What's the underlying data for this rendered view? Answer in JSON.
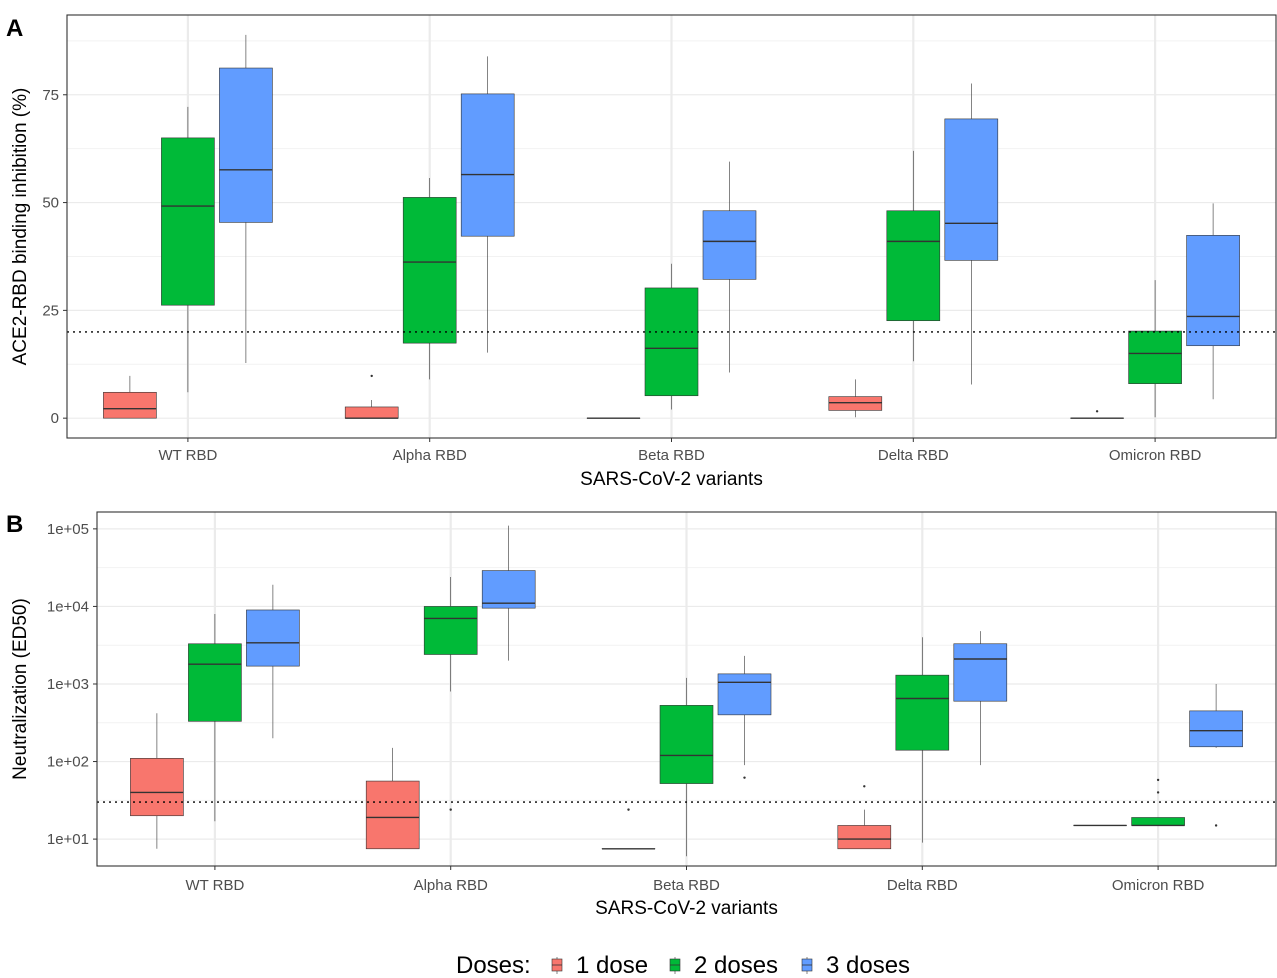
{
  "figure": {
    "legend": {
      "title": "Doses:",
      "entries": [
        {
          "label": "1 dose",
          "color": "#F8766D"
        },
        {
          "label": "2 doses",
          "color": "#00BA38"
        },
        {
          "label": "3 doses",
          "color": "#619CFF"
        }
      ]
    }
  },
  "chart_data": [
    {
      "panel": "A",
      "type": "box",
      "xlabel": "SARS-CoV-2 variants",
      "ylabel": "ACE2-RBD binding inhibition (%)",
      "categories": [
        "WT RBD",
        "Alpha RBD",
        "Beta RBD",
        "Delta RBD",
        "Omicron RBD"
      ],
      "yscale": "linear",
      "ylim": [
        -4.6,
        93.5
      ],
      "yticks": [
        0,
        25,
        50,
        75
      ],
      "ytick_labels": [
        "0",
        "25",
        "50",
        "75"
      ],
      "reference_line": 20,
      "grid": true,
      "series": [
        {
          "name": "1 dose",
          "color": "#F8766D",
          "boxes": [
            {
              "whisker_low": 0,
              "q1": 0,
              "median": 2.2,
              "q3": 6,
              "whisker_high": 9.8,
              "outliers": []
            },
            {
              "whisker_low": 0,
              "q1": 0,
              "median": 0,
              "q3": 2.6,
              "whisker_high": 4.2,
              "outliers": [
                9.8
              ]
            },
            {
              "whisker_low": 0,
              "q1": 0,
              "median": 0,
              "q3": 0,
              "whisker_high": 0,
              "outliers": []
            },
            {
              "whisker_low": 0.2,
              "q1": 1.8,
              "median": 3.6,
              "q3": 5,
              "whisker_high": 9,
              "outliers": []
            },
            {
              "whisker_low": 0,
              "q1": 0,
              "median": 0,
              "q3": 0,
              "whisker_high": 0,
              "outliers": [
                1.6
              ]
            }
          ]
        },
        {
          "name": "2 doses",
          "color": "#00BA38",
          "boxes": [
            {
              "whisker_low": 6,
              "q1": 26.2,
              "median": 49.2,
              "q3": 65,
              "whisker_high": 72.2,
              "outliers": []
            },
            {
              "whisker_low": 9,
              "q1": 17.4,
              "median": 36.2,
              "q3": 51.2,
              "whisker_high": 55.7,
              "outliers": []
            },
            {
              "whisker_low": 2,
              "q1": 5.2,
              "median": 16.2,
              "q3": 30.2,
              "whisker_high": 35.8,
              "outliers": []
            },
            {
              "whisker_low": 13.2,
              "q1": 22.6,
              "median": 41,
              "q3": 48.1,
              "whisker_high": 62,
              "outliers": []
            },
            {
              "whisker_low": 0.2,
              "q1": 8,
              "median": 15,
              "q3": 20.2,
              "whisker_high": 32,
              "outliers": []
            }
          ]
        },
        {
          "name": "3 doses",
          "color": "#619CFF",
          "boxes": [
            {
              "whisker_low": 12.8,
              "q1": 45.4,
              "median": 57.6,
              "q3": 81.2,
              "whisker_high": 88.9,
              "outliers": []
            },
            {
              "whisker_low": 15.2,
              "q1": 42.2,
              "median": 56.5,
              "q3": 75.2,
              "whisker_high": 83.9,
              "outliers": []
            },
            {
              "whisker_low": 10.6,
              "q1": 32.2,
              "median": 41,
              "q3": 48.1,
              "whisker_high": 59.5,
              "outliers": []
            },
            {
              "whisker_low": 7.8,
              "q1": 36.6,
              "median": 45.2,
              "q3": 69.4,
              "whisker_high": 77.6,
              "outliers": []
            },
            {
              "whisker_low": 4.4,
              "q1": 16.8,
              "median": 23.6,
              "q3": 42.4,
              "whisker_high": 49.8,
              "outliers": []
            }
          ]
        }
      ]
    },
    {
      "panel": "B",
      "type": "box",
      "xlabel": "SARS-CoV-2 variants",
      "ylabel": "Neutralization (ED50)",
      "categories": [
        "WT RBD",
        "Alpha RBD",
        "Beta RBD",
        "Delta RBD",
        "Omicron RBD"
      ],
      "yscale": "log10",
      "ylim": [
        4.5,
        165000
      ],
      "yticks": [
        10,
        100,
        1000,
        10000,
        100000
      ],
      "ytick_labels": [
        "1e+01",
        "1e+02",
        "1e+03",
        "1e+04",
        "1e+05"
      ],
      "reference_line": 30,
      "grid": true,
      "series": [
        {
          "name": "1 dose",
          "color": "#F8766D",
          "boxes": [
            {
              "whisker_low": 7.5,
              "q1": 20,
              "median": 40,
              "q3": 110,
              "whisker_high": 420,
              "outliers": []
            },
            {
              "whisker_low": 7.5,
              "q1": 7.5,
              "median": 19,
              "q3": 56,
              "whisker_high": 150,
              "outliers": []
            },
            {
              "whisker_low": 7.5,
              "q1": 7.5,
              "median": 7.5,
              "q3": 7.5,
              "whisker_high": 7.5,
              "outliers": [
                24
              ]
            },
            {
              "whisker_low": 7.5,
              "q1": 7.5,
              "median": 10,
              "q3": 15,
              "whisker_high": 24,
              "outliers": [
                48
              ]
            },
            {
              "whisker_low": 15,
              "q1": 15,
              "median": 15,
              "q3": 15,
              "whisker_high": 15,
              "outliers": []
            }
          ]
        },
        {
          "name": "2 doses",
          "color": "#00BA38",
          "boxes": [
            {
              "whisker_low": 17,
              "q1": 330,
              "median": 1800,
              "q3": 3300,
              "whisker_high": 8000,
              "outliers": []
            },
            {
              "whisker_low": 800,
              "q1": 2400,
              "median": 7000,
              "q3": 10000,
              "whisker_high": 24000,
              "outliers": [
                24
              ]
            },
            {
              "whisker_low": 6,
              "q1": 52,
              "median": 120,
              "q3": 530,
              "whisker_high": 1200,
              "outliers": []
            },
            {
              "whisker_low": 9,
              "q1": 140,
              "median": 650,
              "q3": 1300,
              "whisker_high": 4000,
              "outliers": []
            },
            {
              "whisker_low": 15,
              "q1": 15,
              "median": 15,
              "q3": 19,
              "whisker_high": 19,
              "outliers": [
                40,
                58
              ]
            }
          ]
        },
        {
          "name": "3 doses",
          "color": "#619CFF",
          "boxes": [
            {
              "whisker_low": 200,
              "q1": 1700,
              "median": 3400,
              "q3": 9000,
              "whisker_high": 19000,
              "outliers": []
            },
            {
              "whisker_low": 2000,
              "q1": 9500,
              "median": 11000,
              "q3": 29000,
              "whisker_high": 110000,
              "outliers": []
            },
            {
              "whisker_low": 90,
              "q1": 400,
              "median": 1050,
              "q3": 1350,
              "whisker_high": 2300,
              "outliers": [
                62
              ]
            },
            {
              "whisker_low": 90,
              "q1": 600,
              "median": 2100,
              "q3": 3300,
              "whisker_high": 4800,
              "outliers": []
            },
            {
              "whisker_low": 150,
              "q1": 155,
              "median": 250,
              "q3": 450,
              "whisker_high": 1000,
              "outliers": [
                15
              ]
            }
          ]
        }
      ]
    }
  ]
}
